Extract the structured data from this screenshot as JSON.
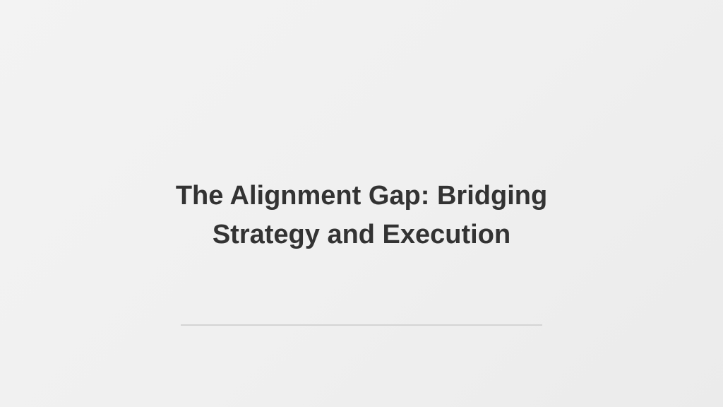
{
  "slide": {
    "title_lines": [
      "The Alignment Gap: Bridging",
      "Strategy and Execution"
    ]
  },
  "colors": {
    "title_text": "#333333",
    "divider": "#d4d4d4",
    "background": "#f0f0f0"
  }
}
